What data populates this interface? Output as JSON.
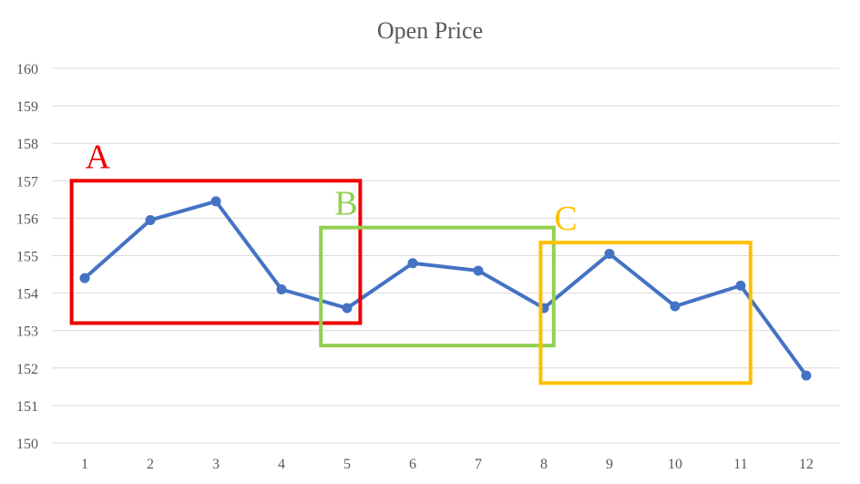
{
  "chart_data": {
    "type": "line",
    "title": "Open Price",
    "xlabel": "",
    "ylabel": "",
    "x": [
      1,
      2,
      3,
      4,
      5,
      6,
      7,
      8,
      9,
      10,
      11,
      12
    ],
    "series": [
      {
        "name": "",
        "values": [
          154.4,
          155.95,
          156.45,
          154.1,
          153.6,
          154.8,
          154.6,
          153.6,
          155.05,
          153.65,
          154.2,
          151.8
        ],
        "color": "#4472c4"
      }
    ],
    "ylim": [
      150,
      160
    ],
    "yticks": [
      150,
      151,
      152,
      153,
      154,
      155,
      156,
      157,
      158,
      159,
      160
    ],
    "grid": true,
    "annotations": [
      {
        "label": "A",
        "color": "#ee0000",
        "x_range": [
          0.8,
          5.2
        ],
        "y_range": [
          153.2,
          157.0
        ]
      },
      {
        "label": "B",
        "color": "#92d050",
        "x_range": [
          4.6,
          8.15
        ],
        "y_range": [
          152.6,
          155.75
        ]
      },
      {
        "label": "C",
        "color": "#ffc000",
        "x_range": [
          7.95,
          11.15
        ],
        "y_range": [
          151.6,
          155.35
        ]
      }
    ]
  }
}
